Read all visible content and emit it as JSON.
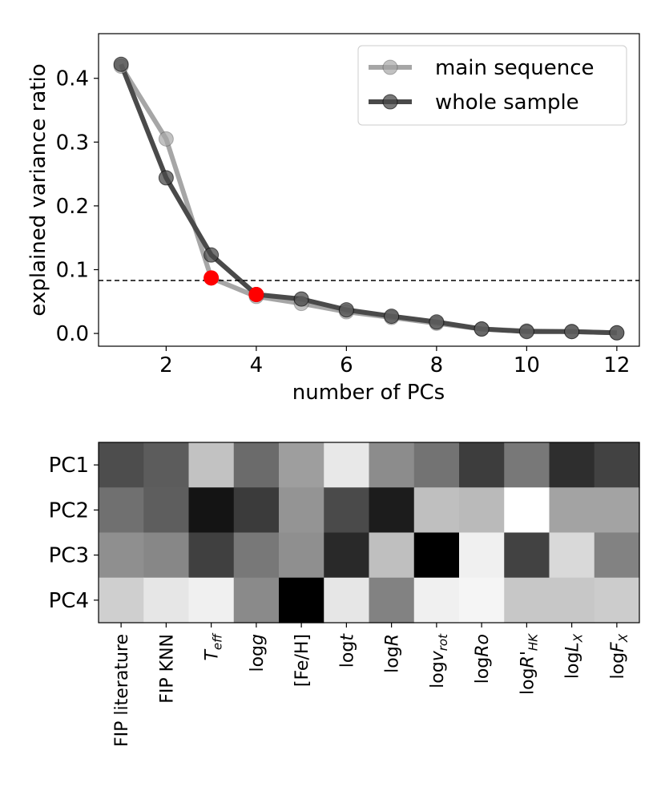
{
  "chart_data": [
    {
      "type": "line",
      "xlabel": "number of PCs",
      "ylabel": "explained variance ratio",
      "xlim": [
        0.5,
        12.5
      ],
      "ylim": [
        -0.02,
        0.47
      ],
      "xticks": [
        2,
        4,
        6,
        8,
        10,
        12
      ],
      "yticks": [
        0.0,
        0.1,
        0.2,
        0.3,
        0.4
      ],
      "xtick_labels": [
        "2",
        "4",
        "6",
        "8",
        "10",
        "12"
      ],
      "ytick_labels": [
        "0.0",
        "0.1",
        "0.2",
        "0.3",
        "0.4"
      ],
      "x": [
        1,
        2,
        3,
        4,
        5,
        6,
        7,
        8,
        9,
        10,
        11,
        12
      ],
      "series": [
        {
          "name": "main sequence",
          "color": "#a6a6a6",
          "values": [
            0.419,
            0.305,
            0.087,
            0.058,
            0.047,
            0.034,
            0.025,
            0.016,
            0.007,
            0.004,
            0.003,
            0.001
          ]
        },
        {
          "name": "whole sample",
          "color": "#4a4a4a",
          "values": [
            0.422,
            0.244,
            0.123,
            0.061,
            0.054,
            0.037,
            0.027,
            0.018,
            0.007,
            0.003,
            0.003,
            0.001
          ]
        }
      ],
      "threshold": 0.083,
      "highlight_points": [
        {
          "x": 3,
          "y": 0.087,
          "color": "#ff0000"
        },
        {
          "x": 4,
          "y": 0.061,
          "color": "#ff0000"
        }
      ],
      "legend": "top-right",
      "grid": false
    },
    {
      "type": "heatmap",
      "rows": [
        "PC1",
        "PC2",
        "PC3",
        "PC4"
      ],
      "columns": [
        "FIP literature",
        "FIP KNN",
        "Teff",
        "logg",
        "[Fe/H]",
        "logt",
        "logR",
        "logvrot",
        "logRo",
        "logR'HK",
        "logLX",
        "logFX"
      ],
      "column_labels": [
        {
          "text": "FIP literature"
        },
        {
          "text": "FIP KNN"
        },
        {
          "text": "T",
          "sub": "eff",
          "italic": true
        },
        {
          "text": "log",
          "italic_part": "g"
        },
        {
          "text": "[Fe/H]"
        },
        {
          "text": "log",
          "italic_part": "t"
        },
        {
          "text": "log",
          "italic_part": "R"
        },
        {
          "text": "log",
          "italic_part": "v",
          "sub": "rot"
        },
        {
          "text": "log",
          "italic_part": "Ro"
        },
        {
          "text": "log",
          "italic_part": "R'",
          "sub": "HK"
        },
        {
          "text": "log",
          "italic_part": "L",
          "sub": "X"
        },
        {
          "text": "log",
          "italic_part": "F",
          "sub": "X"
        }
      ],
      "colormap": "gray",
      "values": [
        [
          0.3,
          0.36,
          0.76,
          0.42,
          0.62,
          0.91,
          0.55,
          0.45,
          0.24,
          0.47,
          0.18,
          0.26
        ],
        [
          0.44,
          0.37,
          0.08,
          0.23,
          0.58,
          0.29,
          0.11,
          0.75,
          0.73,
          1.0,
          0.64,
          0.64
        ],
        [
          0.56,
          0.53,
          0.25,
          0.47,
          0.56,
          0.16,
          0.75,
          0.0,
          0.94,
          0.26,
          0.85,
          0.51
        ],
        [
          0.81,
          0.9,
          0.94,
          0.54,
          0.0,
          0.9,
          0.51,
          0.94,
          0.96,
          0.78,
          0.78,
          0.8
        ]
      ]
    }
  ]
}
